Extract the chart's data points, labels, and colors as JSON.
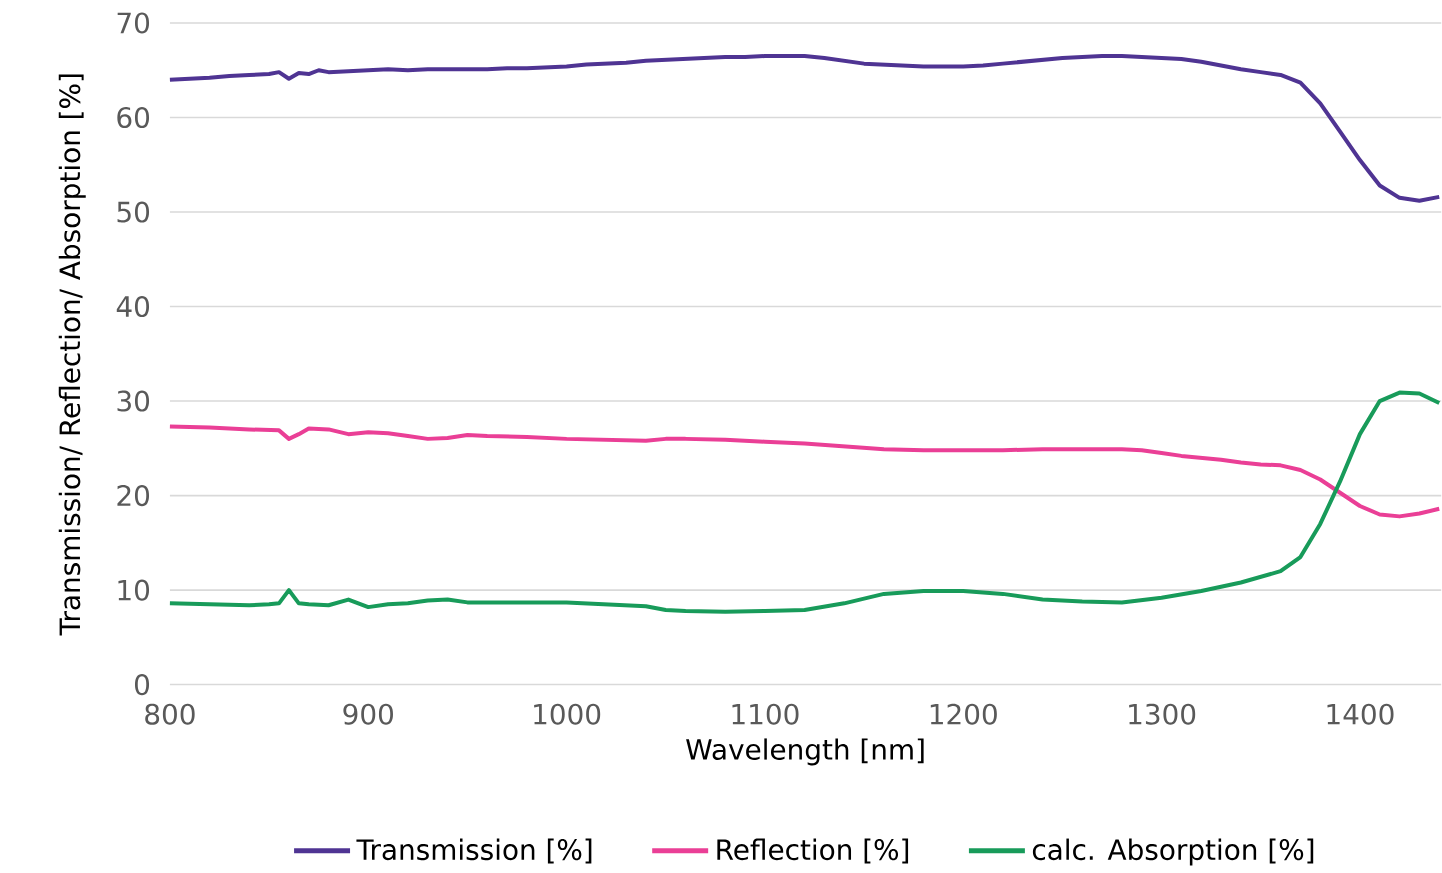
{
  "chart_data": {
    "type": "line",
    "xlabel": "Wavelength [nm]",
    "ylabel": "Transmission/ Reflection/ Absorption [%]",
    "xlim": [
      800,
      1441
    ],
    "ylim": [
      0,
      70
    ],
    "xticks": [
      800,
      900,
      1000,
      1100,
      1200,
      1300,
      1400
    ],
    "yticks": [
      0,
      10,
      20,
      30,
      40,
      50,
      60,
      70
    ],
    "grid": "y",
    "legend": "bottom",
    "line_style": "solid",
    "marker": "none",
    "series": [
      {
        "name": "Transmission [%]",
        "color": "#4f3493",
        "x": [
          800,
          810,
          820,
          830,
          840,
          850,
          855,
          860,
          865,
          870,
          875,
          880,
          890,
          900,
          910,
          920,
          930,
          940,
          950,
          960,
          970,
          980,
          990,
          1000,
          1010,
          1020,
          1030,
          1040,
          1050,
          1060,
          1070,
          1080,
          1090,
          1100,
          1110,
          1120,
          1130,
          1140,
          1150,
          1160,
          1170,
          1180,
          1190,
          1200,
          1210,
          1220,
          1230,
          1240,
          1250,
          1260,
          1270,
          1280,
          1290,
          1300,
          1310,
          1320,
          1330,
          1340,
          1350,
          1360,
          1370,
          1380,
          1390,
          1400,
          1410,
          1420,
          1430,
          1440
        ],
        "values": [
          64.0,
          64.1,
          64.2,
          64.4,
          64.5,
          64.6,
          64.8,
          64.1,
          64.7,
          64.6,
          65.0,
          64.8,
          64.9,
          65.0,
          65.1,
          65.0,
          65.1,
          65.1,
          65.1,
          65.1,
          65.2,
          65.2,
          65.3,
          65.4,
          65.6,
          65.7,
          65.8,
          66.0,
          66.1,
          66.2,
          66.3,
          66.4,
          66.4,
          66.5,
          66.5,
          66.5,
          66.3,
          66.0,
          65.7,
          65.6,
          65.5,
          65.4,
          65.4,
          65.4,
          65.5,
          65.7,
          65.9,
          66.1,
          66.3,
          66.4,
          66.5,
          66.5,
          66.4,
          66.3,
          66.2,
          65.9,
          65.5,
          65.1,
          64.8,
          64.5,
          63.7,
          61.5,
          58.5,
          55.5,
          52.8,
          51.5,
          51.2,
          51.6
        ]
      },
      {
        "name": "Reflection [%]",
        "color": "#ea3f96",
        "x": [
          800,
          820,
          840,
          855,
          860,
          865,
          870,
          880,
          890,
          900,
          910,
          920,
          930,
          940,
          950,
          960,
          980,
          1000,
          1020,
          1040,
          1050,
          1060,
          1080,
          1100,
          1120,
          1140,
          1160,
          1180,
          1200,
          1220,
          1240,
          1260,
          1280,
          1290,
          1300,
          1310,
          1320,
          1330,
          1340,
          1350,
          1360,
          1370,
          1380,
          1390,
          1400,
          1410,
          1420,
          1430,
          1440
        ],
        "values": [
          27.3,
          27.2,
          27.0,
          26.9,
          26.0,
          26.5,
          27.1,
          27.0,
          26.5,
          26.7,
          26.6,
          26.3,
          26.0,
          26.1,
          26.4,
          26.3,
          26.2,
          26.0,
          25.9,
          25.8,
          26.0,
          26.0,
          25.9,
          25.7,
          25.5,
          25.2,
          24.9,
          24.8,
          24.8,
          24.8,
          24.9,
          24.9,
          24.9,
          24.8,
          24.5,
          24.2,
          24.0,
          23.8,
          23.5,
          23.3,
          23.2,
          22.7,
          21.7,
          20.3,
          18.9,
          18.0,
          17.8,
          18.1,
          18.6
        ]
      },
      {
        "name": "calc. Absorption [%]",
        "color": "#189b5a",
        "x": [
          800,
          820,
          840,
          850,
          855,
          860,
          865,
          870,
          880,
          890,
          900,
          910,
          920,
          930,
          940,
          950,
          960,
          980,
          1000,
          1020,
          1040,
          1050,
          1060,
          1080,
          1100,
          1120,
          1140,
          1160,
          1180,
          1200,
          1220,
          1240,
          1260,
          1280,
          1300,
          1320,
          1340,
          1360,
          1370,
          1380,
          1390,
          1400,
          1410,
          1420,
          1430,
          1440
        ],
        "values": [
          8.6,
          8.5,
          8.4,
          8.5,
          8.6,
          10.0,
          8.6,
          8.5,
          8.4,
          9.0,
          8.2,
          8.5,
          8.6,
          8.9,
          9.0,
          8.7,
          8.7,
          8.7,
          8.7,
          8.5,
          8.3,
          7.9,
          7.8,
          7.7,
          7.8,
          7.9,
          8.6,
          9.6,
          9.9,
          9.9,
          9.6,
          9.0,
          8.8,
          8.7,
          9.2,
          9.9,
          10.8,
          12.0,
          13.5,
          17.0,
          21.5,
          26.5,
          30.0,
          30.9,
          30.8,
          29.8
        ]
      }
    ]
  }
}
